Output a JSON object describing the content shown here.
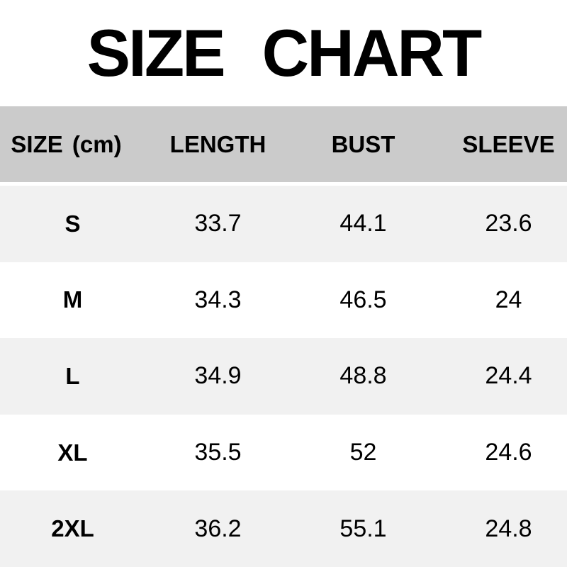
{
  "title": "SIZE CHART",
  "colors": {
    "header_bg": "#cbcbcb",
    "row_alt_bg": "#f1f1f1",
    "row_bg": "#ffffff",
    "text": "#000000"
  },
  "chart_data": {
    "type": "table",
    "title": "SIZE CHART",
    "unit": "cm",
    "columns": [
      "SIZE (cm)",
      "LENGTH",
      "BUST",
      "SLEEVE"
    ],
    "rows": [
      [
        "S",
        33.7,
        44.1,
        23.6
      ],
      [
        "M",
        34.3,
        46.5,
        24
      ],
      [
        "L",
        34.9,
        48.8,
        24.4
      ],
      [
        "XL",
        35.5,
        52,
        24.6
      ],
      [
        "2XL",
        36.2,
        55.1,
        24.8
      ]
    ]
  }
}
